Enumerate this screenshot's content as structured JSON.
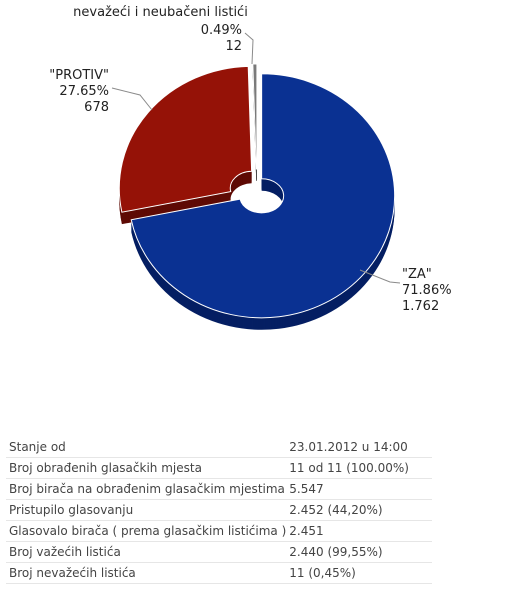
{
  "chart_data": {
    "type": "pie",
    "variant": "3d-donut",
    "slices": [
      {
        "label": "\"ZA\"",
        "percent_text": "71.86%",
        "count_text": "1.762",
        "value": 1762,
        "percent": 71.86,
        "color": "#0a3192",
        "side_color": "#051f63",
        "exploded": true
      },
      {
        "label": "\"PROTIV\"",
        "percent_text": "27.65%",
        "count_text": "678",
        "value": 678,
        "percent": 27.65,
        "color": "#951207",
        "side_color": "#5e0a04",
        "exploded": true
      },
      {
        "label": "nevažeći i neubačeni listići",
        "percent_text": "0.49%",
        "count_text": "12",
        "value": 12,
        "percent": 0.49,
        "color": "#7a7a7a",
        "side_color": "#4a4a4a",
        "exploded": true
      }
    ]
  },
  "table": {
    "rows": [
      {
        "label": "Stanje od",
        "value": "23.01.2012 u 14:00"
      },
      {
        "label": "Broj obrađenih glasačkih mjesta",
        "value": "11 od 11 (100.00%)"
      },
      {
        "label": "Broj birača na obrađenim glasačkim mjestima",
        "value": "5.547"
      },
      {
        "label": "Pristupilo glasovanju",
        "value": "2.452 (44,20%)"
      },
      {
        "label": "Glasovalo birača ( prema glasačkim listićima )",
        "value": "2.451"
      },
      {
        "label": "Broj važećih listića",
        "value": "2.440 (99,55%)"
      },
      {
        "label": "Broj nevažećih listića",
        "value": "11 (0,45%)"
      }
    ]
  }
}
